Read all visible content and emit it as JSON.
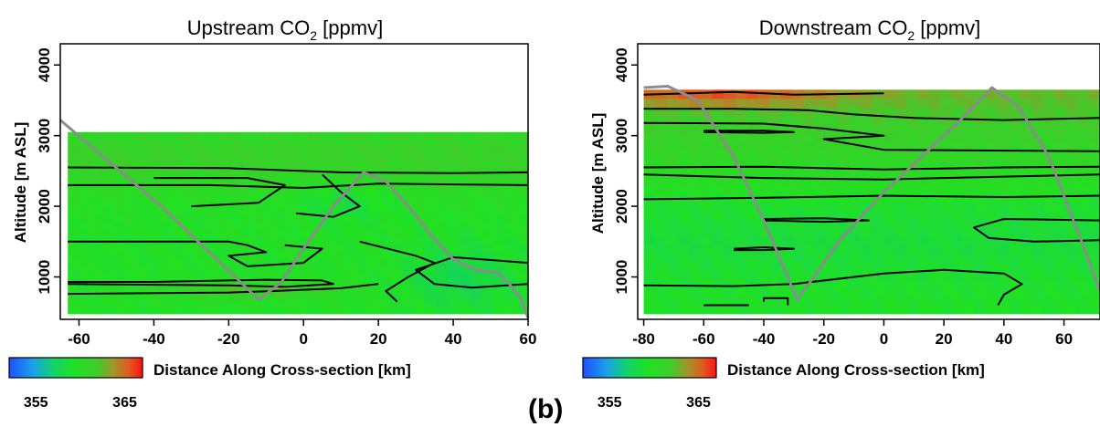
{
  "panel_label": "(b)",
  "chart_data": [
    {
      "type": "heatmap",
      "title": "Upstream CO",
      "title_subscript": "2",
      "title_unit": "[ppmv]",
      "xlabel": "Distance Along Cross-section [km]",
      "ylabel": "Altitude [m ASL]",
      "xlim": [
        -65,
        60
      ],
      "ylim": [
        400,
        4300
      ],
      "xticks": [
        -60,
        -40,
        -20,
        0,
        20,
        40,
        60
      ],
      "yticks": [
        1000,
        2000,
        3000,
        4000
      ],
      "colorbar": {
        "range": [
          352,
          367
        ],
        "ticks": [
          355,
          365
        ]
      },
      "terrain_profile": {
        "x": [
          -65,
          -38,
          -12,
          -6,
          0,
          8,
          16,
          22,
          28,
          34,
          40,
          46,
          52,
          55,
          58,
          60
        ],
        "y": [
          3220,
          2000,
          680,
          920,
          1400,
          2000,
          2480,
          2350,
          2000,
          1600,
          1250,
          1100,
          1060,
          900,
          700,
          420
        ]
      },
      "data_extent": {
        "xmin": -63,
        "xmax": 60,
        "ymin": 480,
        "ymax": 3050
      }
    },
    {
      "type": "heatmap",
      "title": "Downstream CO",
      "title_subscript": "2",
      "title_unit": "[ppmv]",
      "xlabel": "Distance Along Cross-section [km]",
      "ylabel": "Altitude [m ASL]",
      "xlim": [
        -82,
        72
      ],
      "ylim": [
        400,
        4300
      ],
      "xticks": [
        -80,
        -60,
        -40,
        -20,
        0,
        20,
        40,
        60
      ],
      "yticks": [
        1000,
        2000,
        3000,
        4000
      ],
      "colorbar": {
        "range": [
          352,
          367
        ],
        "ticks": [
          355,
          365
        ]
      },
      "terrain_profile": {
        "x": [
          -80,
          -72,
          -62,
          -50,
          -40,
          -32,
          -29,
          -25,
          -15,
          0,
          15,
          25,
          36,
          45,
          55,
          65,
          72
        ],
        "y": [
          3680,
          3700,
          3500,
          2700,
          1800,
          1000,
          680,
          900,
          1500,
          2200,
          2800,
          3200,
          3680,
          3400,
          2700,
          1600,
          800
        ]
      },
      "data_extent": {
        "xmin": -80,
        "xmax": 72,
        "ymin": 480,
        "ymax": 3650
      }
    }
  ]
}
